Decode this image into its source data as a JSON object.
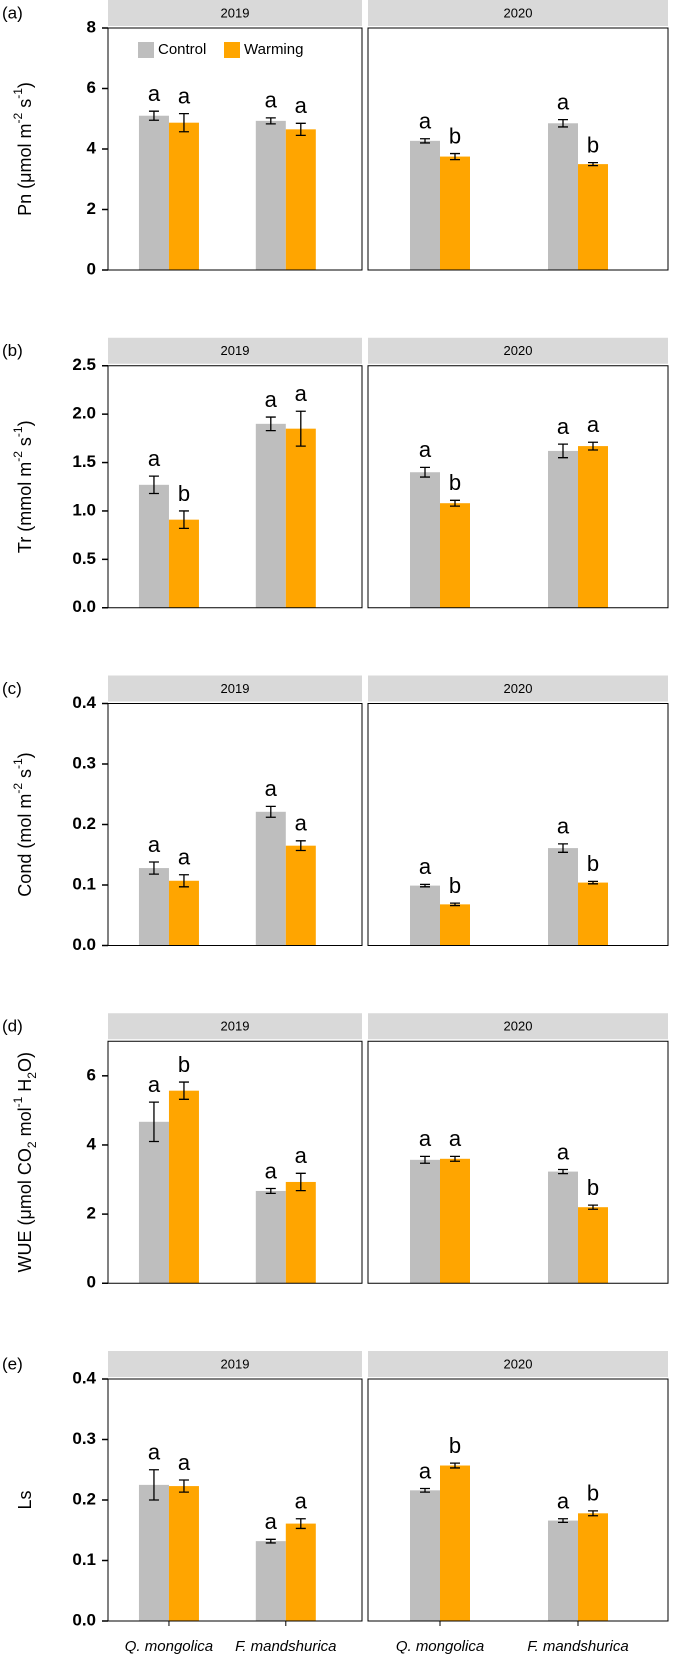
{
  "chart_data": [
    {
      "type": "bar",
      "panel_label": "(a)",
      "y_label": [
        {
          "text": "Pn (μmol m"
        },
        {
          "sup": "-2"
        },
        {
          "text": " s"
        },
        {
          "sup": "-1"
        },
        {
          "text": ")"
        }
      ],
      "ylim": [
        0,
        8
      ],
      "yticks": [
        0,
        2,
        4,
        6,
        8
      ],
      "facets": [
        {
          "title": "2019",
          "series": [
            {
              "name": "Control",
              "color": "#bebebe",
              "values": [
                5.1,
                4.93
              ],
              "errors": [
                0.15,
                0.1
              ],
              "letters": [
                "a",
                "a"
              ]
            },
            {
              "name": "Warming",
              "color": "#ffa500",
              "values": [
                4.87,
                4.65
              ],
              "errors": [
                0.3,
                0.2
              ],
              "letters": [
                "a",
                "a"
              ]
            }
          ]
        },
        {
          "title": "2020",
          "series": [
            {
              "color": "#bebebe",
              "values": [
                4.27,
                4.85
              ],
              "errors": [
                0.07,
                0.12
              ],
              "letters": [
                "a",
                "a"
              ]
            },
            {
              "color": "#ffa500",
              "values": [
                3.75,
                3.5
              ],
              "errors": [
                0.1,
                0.05
              ],
              "letters": [
                "b",
                "b"
              ]
            }
          ]
        }
      ]
    },
    {
      "type": "bar",
      "panel_label": "(b)",
      "y_label": [
        {
          "text": "Tr (mmol m"
        },
        {
          "sup": "-2"
        },
        {
          "text": " s"
        },
        {
          "sup": "-1"
        },
        {
          "text": ")"
        }
      ],
      "ylim": [
        0,
        2.5
      ],
      "yticks": [
        {
          "value": 0,
          "label": "0.0"
        },
        0.5,
        {
          "value": 1,
          "label": "1.0"
        },
        1.5,
        {
          "value": 2,
          "label": "2.0"
        },
        2.5
      ],
      "facets": [
        {
          "title": "2019",
          "series": [
            {
              "color": "#bebebe",
              "values": [
                1.27,
                1.9
              ],
              "errors": [
                0.09,
                0.07
              ],
              "letters": [
                "a",
                "a"
              ]
            },
            {
              "color": "#ffa500",
              "values": [
                0.91,
                1.85
              ],
              "errors": [
                0.09,
                0.18
              ],
              "letters": [
                "b",
                "a"
              ]
            }
          ]
        },
        {
          "title": "2020",
          "series": [
            {
              "color": "#bebebe",
              "values": [
                1.4,
                1.62
              ],
              "errors": [
                0.05,
                0.07
              ],
              "letters": [
                "a",
                "a"
              ]
            },
            {
              "color": "#ffa500",
              "values": [
                1.08,
                1.67
              ],
              "errors": [
                0.03,
                0.04
              ],
              "letters": [
                "b",
                "a"
              ]
            }
          ]
        }
      ]
    },
    {
      "type": "bar",
      "panel_label": "(c)",
      "y_label": [
        {
          "text": "Cond (mol m"
        },
        {
          "sup": "-2"
        },
        {
          "text": " s"
        },
        {
          "sup": "-1"
        },
        {
          "text": ")"
        }
      ],
      "ylim": [
        0,
        0.4
      ],
      "yticks": [
        {
          "value": 0,
          "label": "0.0"
        },
        0.1,
        0.2,
        0.3,
        0.4
      ],
      "facets": [
        {
          "title": "2019",
          "series": [
            {
              "color": "#bebebe",
              "values": [
                0.128,
                0.221
              ],
              "errors": [
                0.01,
                0.009
              ],
              "letters": [
                "a",
                "a"
              ]
            },
            {
              "color": "#ffa500",
              "values": [
                0.107,
                0.165
              ],
              "errors": [
                0.01,
                0.008
              ],
              "letters": [
                "a",
                "a"
              ]
            }
          ]
        },
        {
          "title": "2020",
          "series": [
            {
              "color": "#bebebe",
              "values": [
                0.099,
                0.161
              ],
              "errors": [
                0.002,
                0.007
              ],
              "letters": [
                "a",
                "a"
              ]
            },
            {
              "color": "#ffa500",
              "values": [
                0.068,
                0.104
              ],
              "errors": [
                0.002,
                0.002
              ],
              "letters": [
                "b",
                "b"
              ]
            }
          ]
        }
      ]
    },
    {
      "type": "bar",
      "panel_label": "(d)",
      "y_label": [
        {
          "text": "WUE (μmol CO"
        },
        {
          "sub": "2"
        },
        {
          "text": " mol"
        },
        {
          "sup": "-1"
        },
        {
          "text": " H"
        },
        {
          "sub": "2"
        },
        {
          "text": "O)"
        }
      ],
      "ylim": [
        0,
        7
      ],
      "yticks": [
        0,
        2,
        4,
        6
      ],
      "facets": [
        {
          "title": "2019",
          "series": [
            {
              "color": "#bebebe",
              "values": [
                4.67,
                2.67
              ],
              "errors": [
                0.57,
                0.07
              ],
              "letters": [
                "a",
                "a"
              ]
            },
            {
              "color": "#ffa500",
              "values": [
                5.57,
                2.93
              ],
              "errors": [
                0.25,
                0.25
              ],
              "letters": [
                "b",
                "a"
              ]
            }
          ]
        },
        {
          "title": "2020",
          "series": [
            {
              "color": "#bebebe",
              "values": [
                3.57,
                3.23
              ],
              "errors": [
                0.1,
                0.06
              ],
              "letters": [
                "a",
                "a"
              ]
            },
            {
              "color": "#ffa500",
              "values": [
                3.6,
                2.2
              ],
              "errors": [
                0.07,
                0.06
              ],
              "letters": [
                "a",
                "b"
              ]
            }
          ]
        }
      ]
    },
    {
      "type": "bar",
      "panel_label": "(e)",
      "y_label": [
        {
          "text": "Ls"
        }
      ],
      "ylim": [
        0,
        0.4
      ],
      "yticks": [
        {
          "value": 0,
          "label": "0.0"
        },
        0.1,
        0.2,
        0.3,
        0.4
      ],
      "facets": [
        {
          "title": "2019",
          "categories": [
            "Q. mongolica",
            "F. mandshurica"
          ],
          "series": [
            {
              "color": "#bebebe",
              "values": [
                0.225,
                0.132
              ],
              "errors": [
                0.025,
                0.003
              ],
              "letters": [
                "a",
                "a"
              ]
            },
            {
              "color": "#ffa500",
              "values": [
                0.223,
                0.161
              ],
              "errors": [
                0.01,
                0.008
              ],
              "letters": [
                "a",
                "a"
              ]
            }
          ]
        },
        {
          "title": "2020",
          "categories": [
            "Q. mongolica",
            "F. mandshurica"
          ],
          "series": [
            {
              "color": "#bebebe",
              "values": [
                0.216,
                0.166
              ],
              "errors": [
                0.003,
                0.003
              ],
              "letters": [
                "a",
                "a"
              ]
            },
            {
              "color": "#ffa500",
              "values": [
                0.257,
                0.178
              ],
              "errors": [
                0.004,
                0.004
              ],
              "letters": [
                "b",
                "b"
              ]
            }
          ]
        }
      ]
    }
  ]
}
